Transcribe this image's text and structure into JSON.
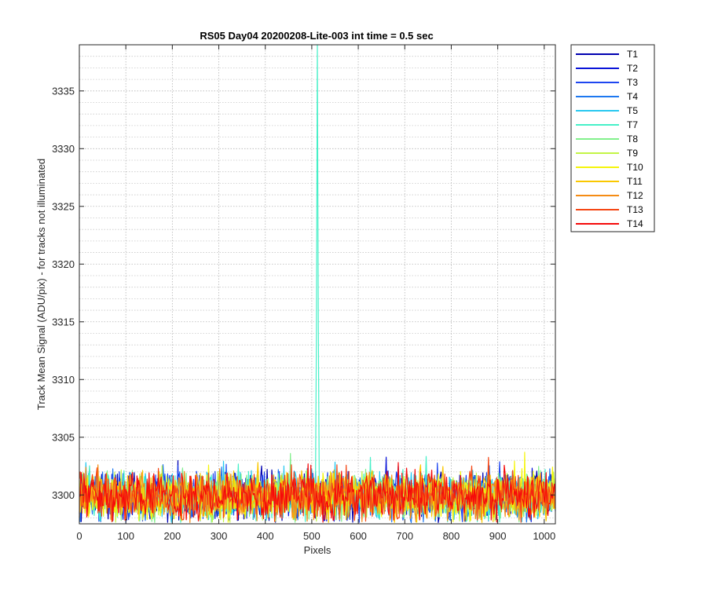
{
  "chart_data": {
    "type": "line",
    "title": "RS05 Day04 20200208-Lite-003 int time = 0.5 sec",
    "xlabel": "Pixels",
    "ylabel": "Track Mean Signal (ADU/pix) - for tracks not illuminated",
    "xlim": [
      0,
      1024
    ],
    "ylim": [
      3297.5,
      3339
    ],
    "x_ticks": [
      0,
      100,
      200,
      300,
      400,
      500,
      600,
      700,
      800,
      900,
      1000
    ],
    "y_ticks": [
      3300,
      3305,
      3310,
      3315,
      3320,
      3325,
      3330,
      3335
    ],
    "grid": "major and minor, dotted",
    "legend_placement": "outside right, top",
    "series": [
      {
        "name": "T1",
        "color": "#0000b0",
        "baseline": 3299.9,
        "noise": 1.2
      },
      {
        "name": "T2",
        "color": "#0a14d8",
        "baseline": 3299.9,
        "noise": 1.2
      },
      {
        "name": "T3",
        "color": "#1e46f0",
        "baseline": 3299.9,
        "noise": 1.2
      },
      {
        "name": "T4",
        "color": "#1e78f0",
        "baseline": 3299.9,
        "noise": 1.2
      },
      {
        "name": "T5",
        "color": "#28c8f0",
        "baseline": 3299.9,
        "noise": 1.2
      },
      {
        "name": "T7",
        "color": "#46f0c8",
        "baseline": 3299.9,
        "noise": 1.2,
        "peak": {
          "x": 512,
          "y": 3339
        }
      },
      {
        "name": "T8",
        "color": "#82f08c",
        "baseline": 3299.9,
        "noise": 1.2
      },
      {
        "name": "T9",
        "color": "#c3f546",
        "baseline": 3299.9,
        "noise": 1.2
      },
      {
        "name": "T10",
        "color": "#f5f50a",
        "baseline": 3299.9,
        "noise": 1.2
      },
      {
        "name": "T11",
        "color": "#fac800",
        "baseline": 3299.9,
        "noise": 1.2
      },
      {
        "name": "T12",
        "color": "#f58c14",
        "baseline": 3299.9,
        "noise": 1.2
      },
      {
        "name": "T13",
        "color": "#f54614",
        "baseline": 3299.9,
        "noise": 1.2
      },
      {
        "name": "T14",
        "color": "#f50a0a",
        "baseline": 3299.9,
        "noise": 1.2
      }
    ]
  }
}
